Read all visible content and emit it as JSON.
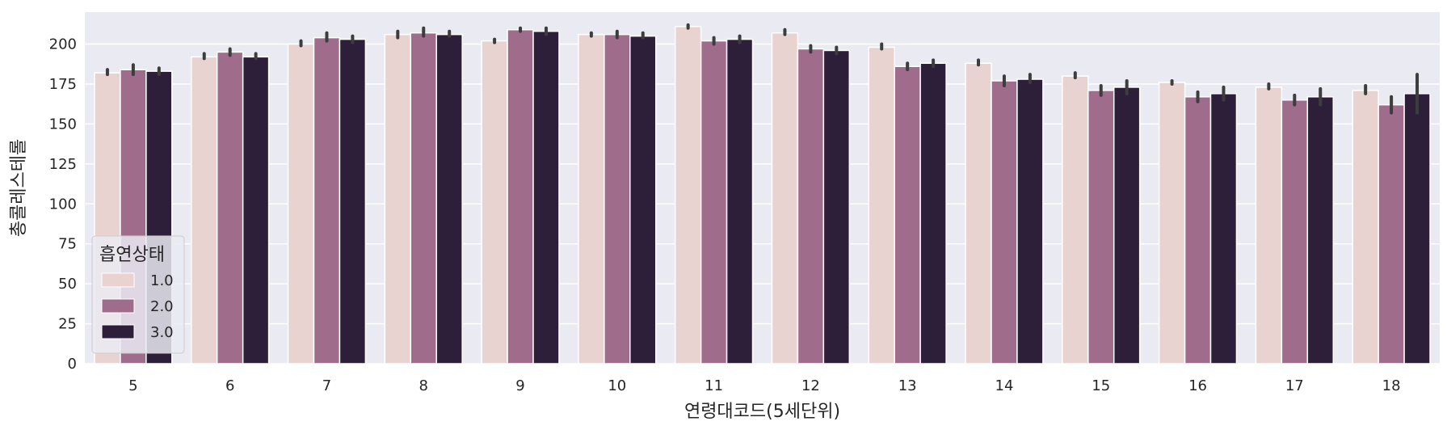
{
  "chart_data": {
    "type": "bar",
    "xlabel": "연령대코드(5세단위)",
    "ylabel": "총콜레스테롤",
    "ylim": [
      0,
      220
    ],
    "yticks": [
      0,
      25,
      50,
      75,
      100,
      125,
      150,
      175,
      200
    ],
    "grid": true,
    "legend": {
      "title": "흡연상태",
      "placement": "lower-left"
    },
    "categories": [
      "5",
      "6",
      "7",
      "8",
      "9",
      "10",
      "11",
      "12",
      "13",
      "14",
      "15",
      "16",
      "17",
      "18"
    ],
    "series": [
      {
        "name": "1.0",
        "color": "#e8d3d1",
        "values": [
          182,
          192,
          200,
          206,
          202,
          206,
          211,
          207,
          198,
          188,
          180,
          176,
          173,
          171
        ],
        "ci": [
          [
            181,
            184
          ],
          [
            191,
            194
          ],
          [
            199,
            202
          ],
          [
            204,
            208
          ],
          [
            201,
            203
          ],
          [
            205,
            207
          ],
          [
            210,
            212
          ],
          [
            206,
            209
          ],
          [
            197,
            200
          ],
          [
            187,
            190
          ],
          [
            179,
            182
          ],
          [
            175,
            177
          ],
          [
            172,
            175
          ],
          [
            169,
            174
          ]
        ]
      },
      {
        "name": "2.0",
        "color": "#a06c8c",
        "values": [
          184,
          195,
          204,
          207,
          209,
          206,
          202,
          197,
          186,
          177,
          171,
          167,
          165,
          162
        ],
        "ci": [
          [
            181,
            187
          ],
          [
            193,
            197
          ],
          [
            202,
            207
          ],
          [
            205,
            210
          ],
          [
            208,
            210
          ],
          [
            204,
            208
          ],
          [
            200,
            204
          ],
          [
            195,
            199
          ],
          [
            184,
            188
          ],
          [
            174,
            180
          ],
          [
            168,
            174
          ],
          [
            164,
            170
          ],
          [
            162,
            168
          ],
          [
            157,
            167
          ]
        ]
      },
      {
        "name": "3.0",
        "color": "#2d1f39",
        "values": [
          183,
          192,
          203,
          206,
          208,
          205,
          203,
          196,
          188,
          178,
          173,
          169,
          167,
          169
        ],
        "ci": [
          [
            181,
            185
          ],
          [
            191,
            194
          ],
          [
            201,
            205
          ],
          [
            205,
            208
          ],
          [
            206,
            210
          ],
          [
            204,
            207
          ],
          [
            201,
            205
          ],
          [
            194,
            198
          ],
          [
            186,
            190
          ],
          [
            176,
            181
          ],
          [
            169,
            177
          ],
          [
            165,
            173
          ],
          [
            162,
            172
          ],
          [
            157,
            181
          ]
        ]
      }
    ]
  }
}
